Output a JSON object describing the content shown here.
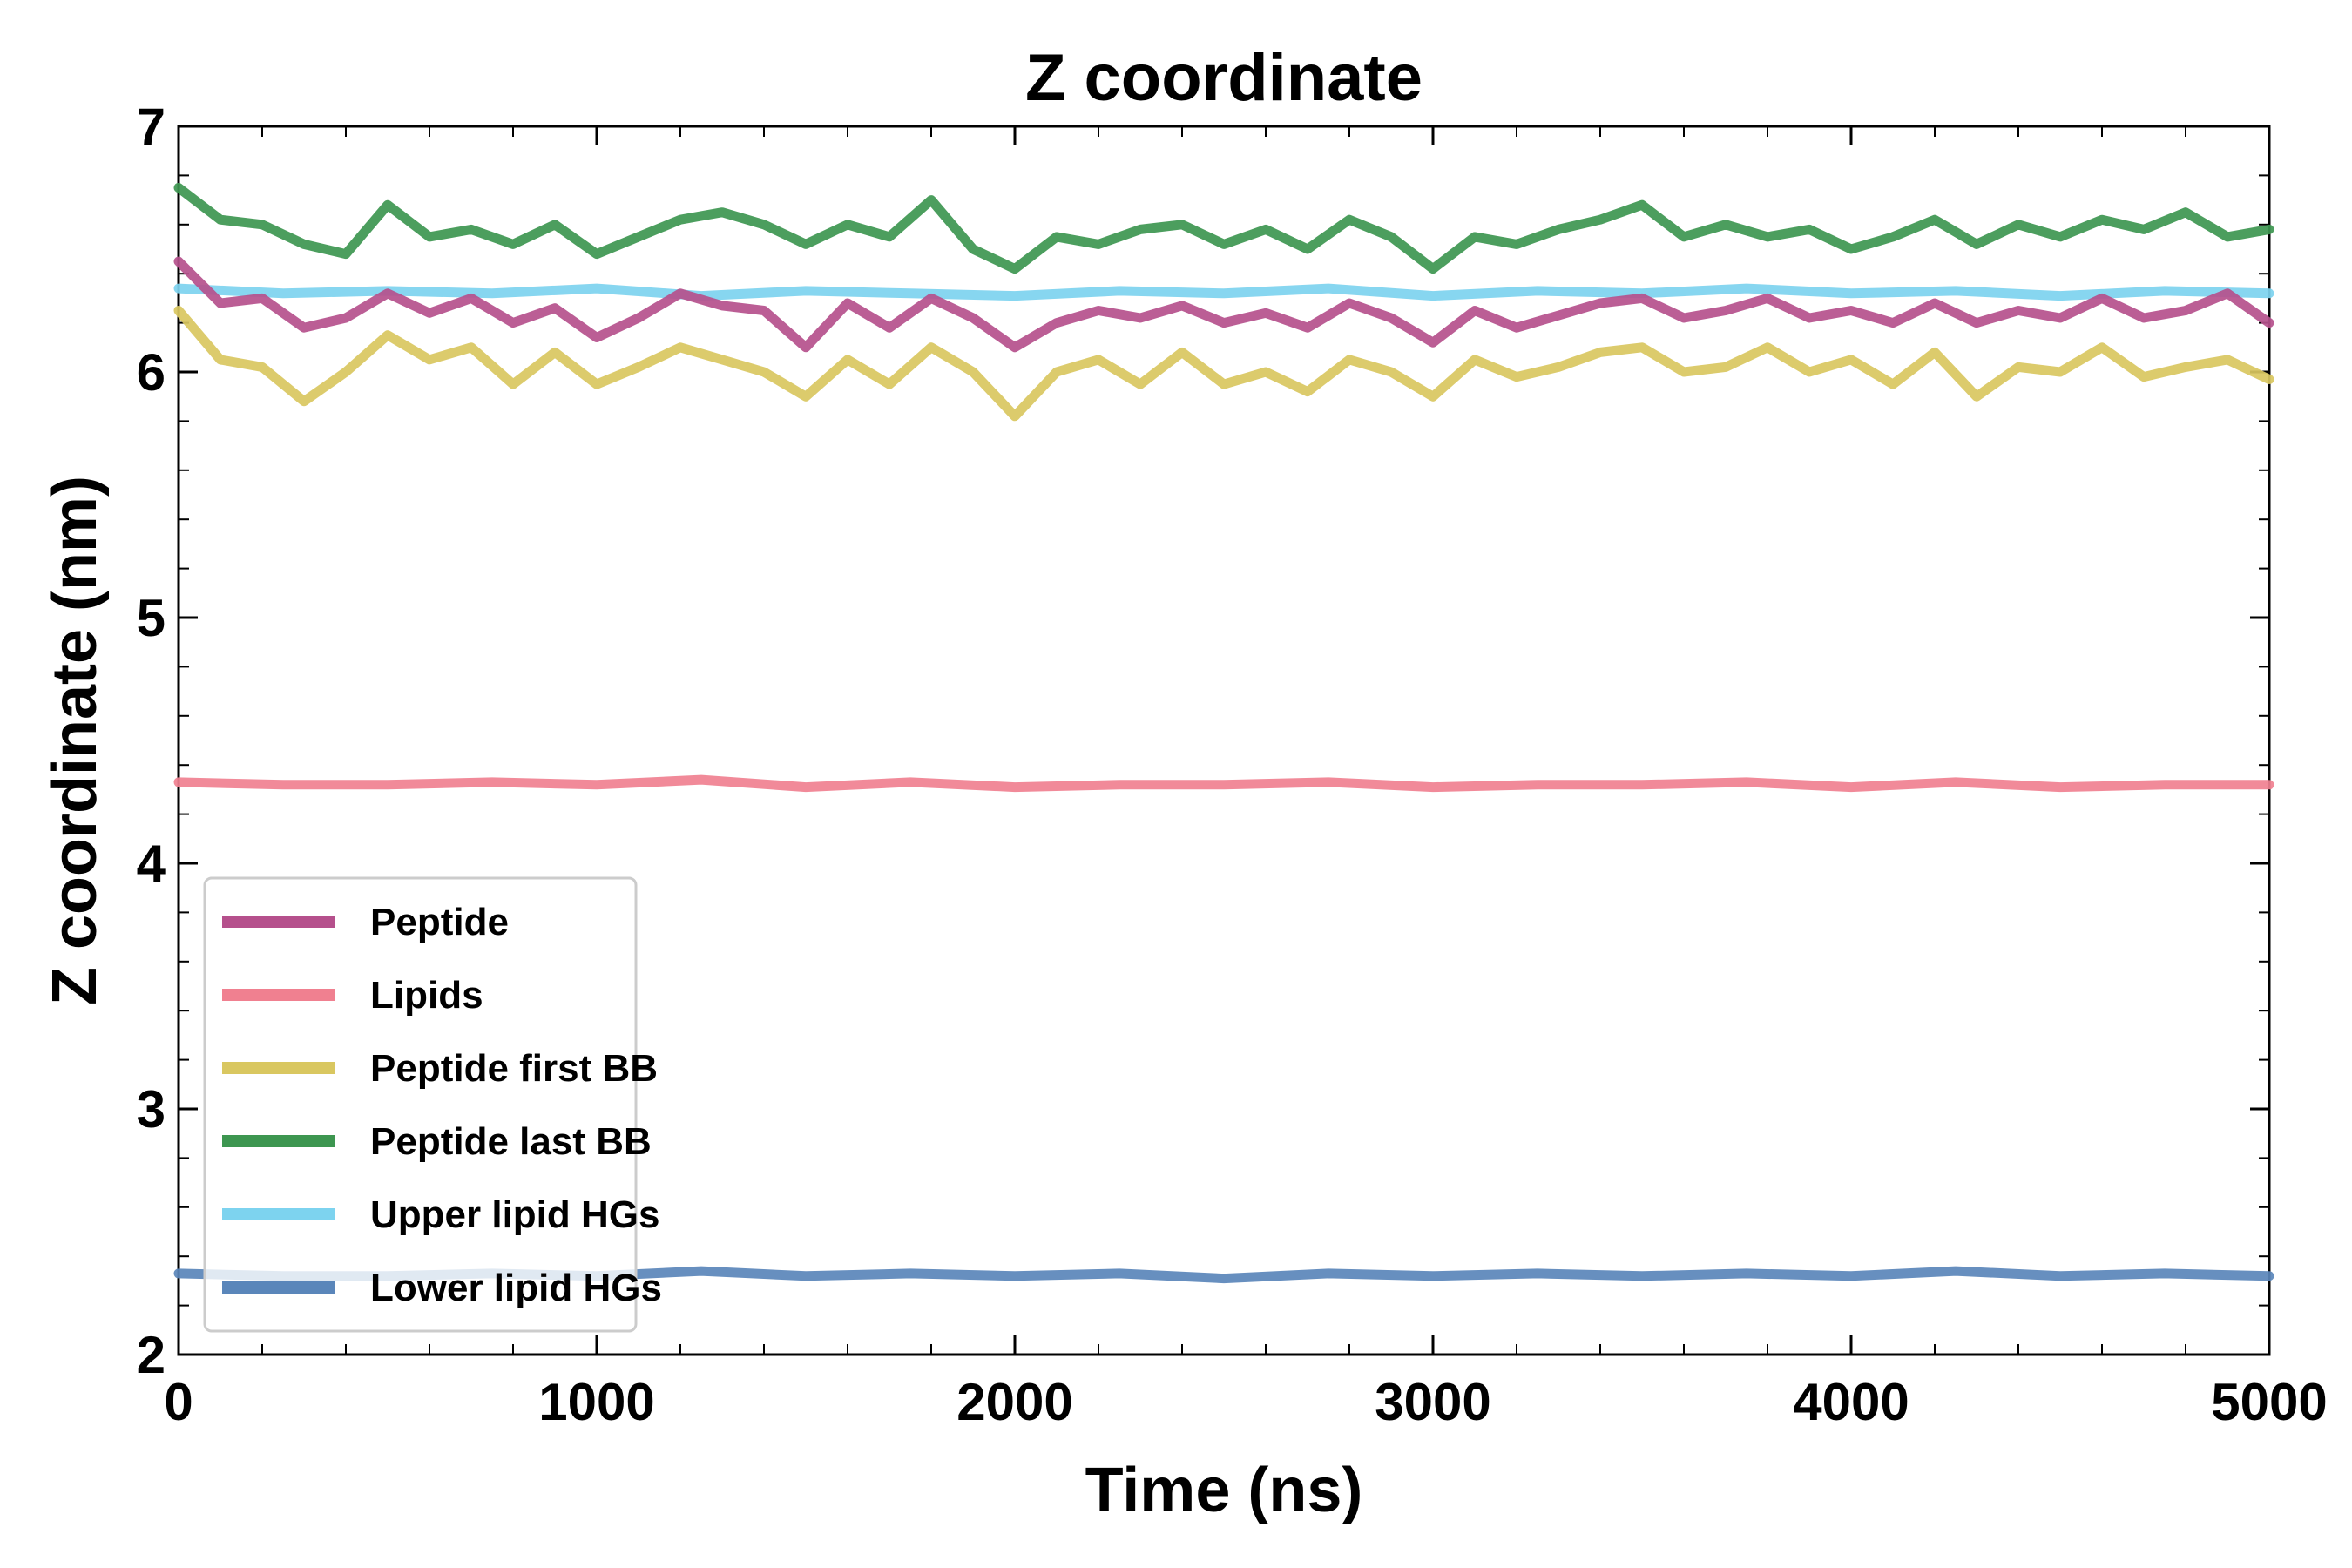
{
  "chart_data": {
    "type": "line",
    "title": "Z coordinate",
    "xlabel": "Time (ns)",
    "ylabel": "Z coordinate (nm)",
    "xlim": [
      0,
      5000
    ],
    "ylim": [
      2,
      7
    ],
    "xticks": [
      0,
      1000,
      2000,
      3000,
      4000,
      5000
    ],
    "yticks": [
      2,
      3,
      4,
      5,
      6,
      7
    ],
    "grid": false,
    "legend_position": "lower-left",
    "series": [
      {
        "name": "Peptide",
        "color": "#b5508c",
        "x": [
          0,
          100,
          200,
          300,
          400,
          500,
          600,
          700,
          800,
          900,
          1000,
          1100,
          1200,
          1300,
          1400,
          1500,
          1600,
          1700,
          1800,
          1900,
          2000,
          2100,
          2200,
          2300,
          2400,
          2500,
          2600,
          2700,
          2800,
          2900,
          3000,
          3100,
          3200,
          3300,
          3400,
          3500,
          3600,
          3700,
          3800,
          3900,
          4000,
          4100,
          4200,
          4300,
          4400,
          4500,
          4600,
          4700,
          4800,
          4900,
          5000
        ],
        "y": [
          6.45,
          6.28,
          6.3,
          6.18,
          6.22,
          6.32,
          6.24,
          6.3,
          6.2,
          6.26,
          6.14,
          6.22,
          6.32,
          6.27,
          6.25,
          6.1,
          6.28,
          6.18,
          6.3,
          6.22,
          6.1,
          6.2,
          6.25,
          6.22,
          6.27,
          6.2,
          6.24,
          6.18,
          6.28,
          6.22,
          6.12,
          6.25,
          6.18,
          6.23,
          6.28,
          6.3,
          6.22,
          6.25,
          6.3,
          6.22,
          6.25,
          6.2,
          6.28,
          6.2,
          6.25,
          6.22,
          6.3,
          6.22,
          6.25,
          6.32,
          6.2
        ]
      },
      {
        "name": "Lipids",
        "color": "#f08090",
        "x": [
          0,
          250,
          500,
          750,
          1000,
          1250,
          1500,
          1750,
          2000,
          2250,
          2500,
          2750,
          3000,
          3250,
          3500,
          3750,
          4000,
          4250,
          4500,
          4750,
          5000
        ],
        "y": [
          4.33,
          4.32,
          4.32,
          4.33,
          4.32,
          4.34,
          4.31,
          4.33,
          4.31,
          4.32,
          4.32,
          4.33,
          4.31,
          4.32,
          4.32,
          4.33,
          4.31,
          4.33,
          4.31,
          4.32,
          4.32
        ]
      },
      {
        "name": "Peptide first BB",
        "color": "#d9c760",
        "x": [
          0,
          100,
          200,
          300,
          400,
          500,
          600,
          700,
          800,
          900,
          1000,
          1100,
          1200,
          1300,
          1400,
          1500,
          1600,
          1700,
          1800,
          1900,
          2000,
          2100,
          2200,
          2300,
          2400,
          2500,
          2600,
          2700,
          2800,
          2900,
          3000,
          3100,
          3200,
          3300,
          3400,
          3500,
          3600,
          3700,
          3800,
          3900,
          4000,
          4100,
          4200,
          4300,
          4400,
          4500,
          4600,
          4700,
          4800,
          4900,
          5000
        ],
        "y": [
          6.25,
          6.05,
          6.02,
          5.88,
          6.0,
          6.15,
          6.05,
          6.1,
          5.95,
          6.08,
          5.95,
          6.02,
          6.1,
          6.05,
          6.0,
          5.9,
          6.05,
          5.95,
          6.1,
          6.0,
          5.82,
          6.0,
          6.05,
          5.95,
          6.08,
          5.95,
          6.0,
          5.92,
          6.05,
          6.0,
          5.9,
          6.05,
          5.98,
          6.02,
          6.08,
          6.1,
          6.0,
          6.02,
          6.1,
          6.0,
          6.05,
          5.95,
          6.08,
          5.9,
          6.02,
          6.0,
          6.1,
          5.98,
          6.02,
          6.05,
          5.97
        ]
      },
      {
        "name": "Peptide last BB",
        "color": "#3d9650",
        "x": [
          0,
          100,
          200,
          300,
          400,
          500,
          600,
          700,
          800,
          900,
          1000,
          1100,
          1200,
          1300,
          1400,
          1500,
          1600,
          1700,
          1800,
          1900,
          2000,
          2100,
          2200,
          2300,
          2400,
          2500,
          2600,
          2700,
          2800,
          2900,
          3000,
          3100,
          3200,
          3300,
          3400,
          3500,
          3600,
          3700,
          3800,
          3900,
          4000,
          4100,
          4200,
          4300,
          4400,
          4500,
          4600,
          4700,
          4800,
          4900,
          5000
        ],
        "y": [
          6.75,
          6.62,
          6.6,
          6.52,
          6.48,
          6.68,
          6.55,
          6.58,
          6.52,
          6.6,
          6.48,
          6.55,
          6.62,
          6.65,
          6.6,
          6.52,
          6.6,
          6.55,
          6.7,
          6.5,
          6.42,
          6.55,
          6.52,
          6.58,
          6.6,
          6.52,
          6.58,
          6.5,
          6.62,
          6.55,
          6.42,
          6.55,
          6.52,
          6.58,
          6.62,
          6.68,
          6.55,
          6.6,
          6.55,
          6.58,
          6.5,
          6.55,
          6.62,
          6.52,
          6.6,
          6.55,
          6.62,
          6.58,
          6.65,
          6.55,
          6.58
        ]
      },
      {
        "name": "Upper lipid HGs",
        "color": "#7dd3ef",
        "x": [
          0,
          250,
          500,
          750,
          1000,
          1250,
          1500,
          1750,
          2000,
          2250,
          2500,
          2750,
          3000,
          3250,
          3500,
          3750,
          4000,
          4250,
          4500,
          4750,
          5000
        ],
        "y": [
          6.34,
          6.32,
          6.33,
          6.32,
          6.34,
          6.31,
          6.33,
          6.32,
          6.31,
          6.33,
          6.32,
          6.34,
          6.31,
          6.33,
          6.32,
          6.34,
          6.32,
          6.33,
          6.31,
          6.33,
          6.32
        ]
      },
      {
        "name": "Lower lipid HGs",
        "color": "#5a86ba",
        "x": [
          0,
          250,
          500,
          750,
          1000,
          1250,
          1500,
          1750,
          2000,
          2250,
          2500,
          2750,
          3000,
          3250,
          3500,
          3750,
          4000,
          4250,
          4500,
          4750,
          5000
        ],
        "y": [
          2.33,
          2.32,
          2.32,
          2.33,
          2.32,
          2.34,
          2.32,
          2.33,
          2.32,
          2.33,
          2.31,
          2.33,
          2.32,
          2.33,
          2.32,
          2.33,
          2.32,
          2.34,
          2.32,
          2.33,
          2.32
        ]
      }
    ]
  }
}
